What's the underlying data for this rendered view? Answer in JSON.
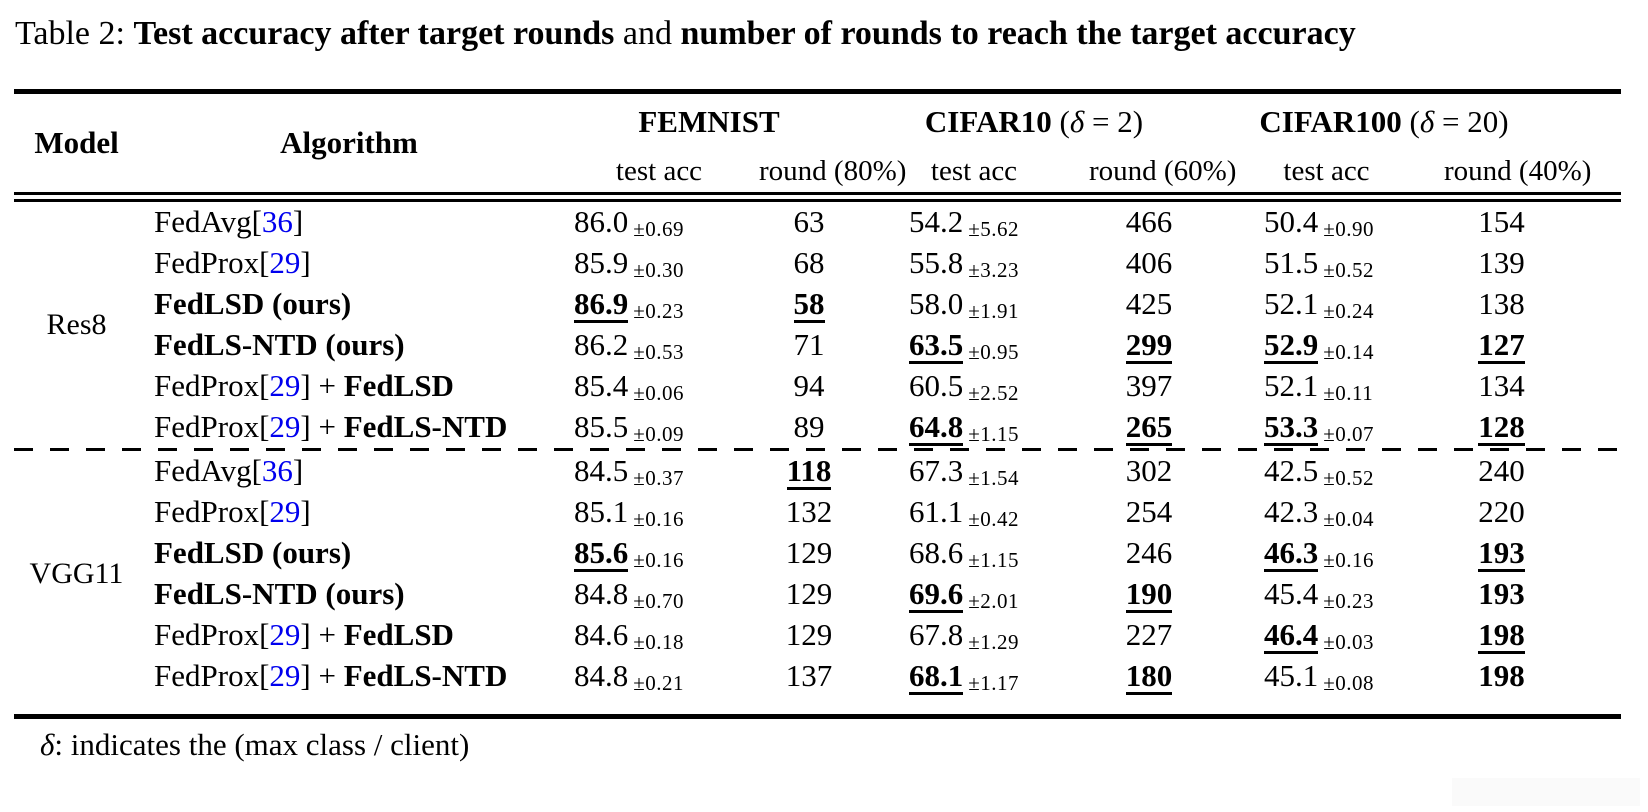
{
  "meta": {
    "background": "#ffffff",
    "text_color": "#000000",
    "citation_blue": "#0000ee",
    "artifact_color": "#fafafa"
  },
  "caption": {
    "segments": [
      {
        "text": "Table 2: ",
        "bold": false
      },
      {
        "text": "Test accuracy after target rounds",
        "bold": true
      },
      {
        "text": " and ",
        "bold": false
      },
      {
        "text": "number of rounds to reach the target accuracy",
        "bold": true
      }
    ]
  },
  "header": {
    "model_label": "Model",
    "algorithm_label": "Algorithm",
    "groups": [
      {
        "name": "FEMNIST",
        "param_prefix": "",
        "param_symbol": "",
        "param_suffix": "",
        "sub": [
          "test acc",
          "round (80%)"
        ]
      },
      {
        "name": "CIFAR10",
        "param_prefix": " (",
        "param_symbol": "δ",
        "param_suffix": " = 2)",
        "sub": [
          "test acc",
          "round (60%)"
        ]
      },
      {
        "name": "CIFAR100",
        "param_prefix": " (",
        "param_symbol": "δ",
        "param_suffix": " = 20)",
        "sub": [
          "test acc",
          "round (40%)"
        ]
      }
    ]
  },
  "sections": [
    {
      "model": "Res8",
      "rows": [
        {
          "label": [
            {
              "text": "FedAvg[",
              "style": "normal"
            },
            {
              "text": "36",
              "style": "cite"
            },
            {
              "text": "]",
              "style": "normal"
            }
          ],
          "cells": [
            {
              "value": "86.0",
              "pm": "±0.69",
              "style": "normal"
            },
            {
              "value": "63",
              "style": "normal"
            },
            {
              "value": "54.2",
              "pm": "±5.62",
              "style": "normal"
            },
            {
              "value": "466",
              "style": "normal"
            },
            {
              "value": "50.4",
              "pm": "±0.90",
              "style": "normal"
            },
            {
              "value": "154",
              "style": "normal"
            }
          ]
        },
        {
          "label": [
            {
              "text": "FedProx[",
              "style": "normal"
            },
            {
              "text": "29",
              "style": "cite"
            },
            {
              "text": "]",
              "style": "normal"
            }
          ],
          "cells": [
            {
              "value": "85.9",
              "pm": "±0.30",
              "style": "normal"
            },
            {
              "value": "68",
              "style": "normal"
            },
            {
              "value": "55.8",
              "pm": "±3.23",
              "style": "normal"
            },
            {
              "value": "406",
              "style": "normal"
            },
            {
              "value": "51.5",
              "pm": "±0.52",
              "style": "normal"
            },
            {
              "value": "139",
              "style": "normal"
            }
          ]
        },
        {
          "label": [
            {
              "text": "FedLSD (ours)",
              "style": "bold"
            }
          ],
          "cells": [
            {
              "value": "86.9",
              "pm": "±0.23",
              "style": "best"
            },
            {
              "value": "58",
              "style": "best"
            },
            {
              "value": "58.0",
              "pm": "±1.91",
              "style": "normal"
            },
            {
              "value": "425",
              "style": "normal"
            },
            {
              "value": "52.1",
              "pm": "±0.24",
              "style": "normal"
            },
            {
              "value": "138",
              "style": "normal"
            }
          ]
        },
        {
          "label": [
            {
              "text": "FedLS-NTD (ours)",
              "style": "bold"
            }
          ],
          "cells": [
            {
              "value": "86.2",
              "pm": "±0.53",
              "style": "normal"
            },
            {
              "value": "71",
              "style": "normal"
            },
            {
              "value": "63.5",
              "pm": "±0.95",
              "style": "best"
            },
            {
              "value": "299",
              "style": "best"
            },
            {
              "value": "52.9",
              "pm": "±0.14",
              "style": "best"
            },
            {
              "value": "127",
              "style": "best"
            }
          ]
        },
        {
          "label": [
            {
              "text": "FedProx[",
              "style": "normal"
            },
            {
              "text": "29",
              "style": "cite"
            },
            {
              "text": "] + ",
              "style": "normal"
            },
            {
              "text": "FedLSD",
              "style": "bold"
            }
          ],
          "cells": [
            {
              "value": "85.4",
              "pm": "±0.06",
              "style": "normal"
            },
            {
              "value": "94",
              "style": "normal"
            },
            {
              "value": "60.5",
              "pm": "±2.52",
              "style": "normal"
            },
            {
              "value": "397",
              "style": "normal"
            },
            {
              "value": "52.1",
              "pm": "±0.11",
              "style": "normal"
            },
            {
              "value": "134",
              "style": "normal"
            }
          ]
        },
        {
          "label": [
            {
              "text": "FedProx[",
              "style": "normal"
            },
            {
              "text": "29",
              "style": "cite"
            },
            {
              "text": "] + ",
              "style": "normal"
            },
            {
              "text": "FedLS-NTD",
              "style": "bold"
            }
          ],
          "cells": [
            {
              "value": "85.5",
              "pm": "±0.09",
              "style": "normal"
            },
            {
              "value": "89",
              "style": "normal"
            },
            {
              "value": "64.8",
              "pm": "±1.15",
              "style": "best"
            },
            {
              "value": "265",
              "style": "best"
            },
            {
              "value": "53.3",
              "pm": "±0.07",
              "style": "best"
            },
            {
              "value": "128",
              "style": "best"
            }
          ]
        }
      ]
    },
    {
      "model": "VGG11",
      "rows": [
        {
          "label": [
            {
              "text": "FedAvg[",
              "style": "normal"
            },
            {
              "text": "36",
              "style": "cite"
            },
            {
              "text": "]",
              "style": "normal"
            }
          ],
          "cells": [
            {
              "value": "84.5",
              "pm": "±0.37",
              "style": "normal"
            },
            {
              "value": "118",
              "style": "best"
            },
            {
              "value": "67.3",
              "pm": "±1.54",
              "style": "normal"
            },
            {
              "value": "302",
              "style": "normal"
            },
            {
              "value": "42.5",
              "pm": "±0.52",
              "style": "normal"
            },
            {
              "value": "240",
              "style": "normal"
            }
          ]
        },
        {
          "label": [
            {
              "text": "FedProx[",
              "style": "normal"
            },
            {
              "text": "29",
              "style": "cite"
            },
            {
              "text": "]",
              "style": "normal"
            }
          ],
          "cells": [
            {
              "value": "85.1",
              "pm": "±0.16",
              "style": "normal"
            },
            {
              "value": "132",
              "style": "normal"
            },
            {
              "value": "61.1",
              "pm": "±0.42",
              "style": "normal"
            },
            {
              "value": "254",
              "style": "normal"
            },
            {
              "value": "42.3",
              "pm": "±0.04",
              "style": "normal"
            },
            {
              "value": "220",
              "style": "normal"
            }
          ]
        },
        {
          "label": [
            {
              "text": "FedLSD (ours)",
              "style": "bold"
            }
          ],
          "cells": [
            {
              "value": "85.6",
              "pm": "±0.16",
              "style": "best"
            },
            {
              "value": "129",
              "style": "normal"
            },
            {
              "value": "68.6",
              "pm": "±1.15",
              "style": "normal"
            },
            {
              "value": "246",
              "style": "normal"
            },
            {
              "value": "46.3",
              "pm": "±0.16",
              "style": "best"
            },
            {
              "value": "193",
              "style": "best"
            }
          ]
        },
        {
          "label": [
            {
              "text": "FedLS-NTD (ours)",
              "style": "bold"
            }
          ],
          "cells": [
            {
              "value": "84.8",
              "pm": "±0.70",
              "style": "normal"
            },
            {
              "value": "129",
              "style": "normal"
            },
            {
              "value": "69.6",
              "pm": "±2.01",
              "style": "best"
            },
            {
              "value": "190",
              "style": "best"
            },
            {
              "value": "45.4",
              "pm": "±0.23",
              "style": "normal"
            },
            {
              "value": "193",
              "style": "bold"
            }
          ]
        },
        {
          "label": [
            {
              "text": "FedProx[",
              "style": "normal"
            },
            {
              "text": "29",
              "style": "cite"
            },
            {
              "text": "] + ",
              "style": "normal"
            },
            {
              "text": "FedLSD",
              "style": "bold"
            }
          ],
          "cells": [
            {
              "value": "84.6",
              "pm": "±0.18",
              "style": "normal"
            },
            {
              "value": "129",
              "style": "normal"
            },
            {
              "value": "67.8",
              "pm": "±1.29",
              "style": "normal"
            },
            {
              "value": "227",
              "style": "normal"
            },
            {
              "value": "46.4",
              "pm": "±0.03",
              "style": "best"
            },
            {
              "value": "198",
              "style": "best"
            }
          ]
        },
        {
          "label": [
            {
              "text": "FedProx[",
              "style": "normal"
            },
            {
              "text": "29",
              "style": "cite"
            },
            {
              "text": "] + ",
              "style": "normal"
            },
            {
              "text": "FedLS-NTD",
              "style": "bold"
            }
          ],
          "cells": [
            {
              "value": "84.8",
              "pm": "±0.21",
              "style": "normal"
            },
            {
              "value": "137",
              "style": "normal"
            },
            {
              "value": "68.1",
              "pm": "±1.17",
              "style": "best"
            },
            {
              "value": "180",
              "style": "best"
            },
            {
              "value": "45.1",
              "pm": "±0.08",
              "style": "normal"
            },
            {
              "value": "198",
              "style": "bold"
            }
          ]
        }
      ]
    }
  ],
  "footnote": {
    "symbol": "δ",
    "text": ": indicates the (max class / client)"
  }
}
